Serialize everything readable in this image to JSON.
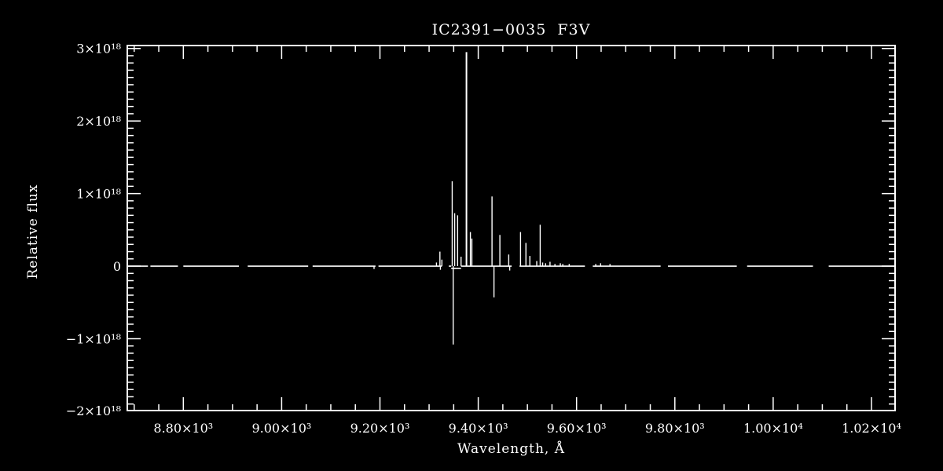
{
  "colors": {
    "background": "#000000",
    "axis": "#ffffff",
    "text": "#ffffff",
    "data_line": "#ffffff"
  },
  "chart_data": {
    "type": "line",
    "title": "IC2391−0035  F3V",
    "xlabel": "Wavelength, Å",
    "ylabel": "Relative flux",
    "grid": false,
    "legend": null,
    "xlim": [
      8686,
      10248
    ],
    "ylim_1e18": [
      -1.99,
      3.04
    ],
    "x_major_step": 200,
    "x_minor_step": 50,
    "y_minor_step_1e18": 0.1,
    "x_major_ticks": [
      {
        "value": 8800,
        "label": "8.80×10³"
      },
      {
        "value": 9000,
        "label": "9.00×10³"
      },
      {
        "value": 9200,
        "label": "9.20×10³"
      },
      {
        "value": 9400,
        "label": "9.40×10³"
      },
      {
        "value": 9600,
        "label": "9.60×10³"
      },
      {
        "value": 9800,
        "label": "9.80×10³"
      },
      {
        "value": 10000,
        "label": "1.00×10⁴"
      },
      {
        "value": 10200,
        "label": "1.02×10⁴"
      }
    ],
    "y_major_ticks": [
      {
        "value": 3,
        "label": "3×10¹⁸"
      },
      {
        "value": 2,
        "label": "2×10¹⁸"
      },
      {
        "value": 1,
        "label": "1×10¹⁸"
      },
      {
        "value": 0,
        "label": "0"
      },
      {
        "value": -1,
        "label": "−1×10¹⁸"
      },
      {
        "value": -2,
        "label": "−2×10¹⁸"
      }
    ],
    "baseline_segments": [
      {
        "from": 8686,
        "to": 8728,
        "flux_1e18": 0
      },
      {
        "from": 8733,
        "to": 8789,
        "flux_1e18": 0
      },
      {
        "from": 8800,
        "to": 8913,
        "flux_1e18": 0
      },
      {
        "from": 8931,
        "to": 9054,
        "flux_1e18": 0
      },
      {
        "from": 9063,
        "to": 9191,
        "flux_1e18": 0
      },
      {
        "from": 9197,
        "to": 9326,
        "flux_1e18": 0
      },
      {
        "from": 9340,
        "to": 9345,
        "flux_1e18": 0
      },
      {
        "from": 9345,
        "to": 9365,
        "flux_1e18": -0.03
      },
      {
        "from": 9365,
        "to": 9468,
        "flux_1e18": 0
      },
      {
        "from": 9484,
        "to": 9617,
        "flux_1e18": 0
      },
      {
        "from": 9633,
        "to": 9771,
        "flux_1e18": 0
      },
      {
        "from": 9786,
        "to": 9926,
        "flux_1e18": 0
      },
      {
        "from": 9947,
        "to": 10081,
        "flux_1e18": 0
      },
      {
        "from": 10113,
        "to": 10248,
        "flux_1e18": 0
      }
    ],
    "spikes": [
      {
        "wavelength": 9188,
        "flux_1e18": -0.04
      },
      {
        "wavelength": 9315,
        "flux_1e18": 0.05
      },
      {
        "wavelength": 9322,
        "flux_1e18": 0.2
      },
      {
        "wavelength": 9323,
        "flux_1e18": -0.05
      },
      {
        "wavelength": 9326,
        "flux_1e18": 0.09
      },
      {
        "wavelength": 9347,
        "flux_1e18": 1.17
      },
      {
        "wavelength": 9349,
        "flux_1e18": -1.08
      },
      {
        "wavelength": 9352,
        "flux_1e18": 0.73
      },
      {
        "wavelength": 9358,
        "flux_1e18": 0.7
      },
      {
        "wavelength": 9365,
        "flux_1e18": 0.13
      },
      {
        "wavelength": 9376,
        "flux_1e18": 2.95,
        "width": 2
      },
      {
        "wavelength": 9384,
        "flux_1e18": 0.47
      },
      {
        "wavelength": 9387,
        "flux_1e18": 0.38
      },
      {
        "wavelength": 9428,
        "flux_1e18": 0.96
      },
      {
        "wavelength": 9432,
        "flux_1e18": -0.43
      },
      {
        "wavelength": 9444,
        "flux_1e18": 0.43
      },
      {
        "wavelength": 9462,
        "flux_1e18": 0.16
      },
      {
        "wavelength": 9464,
        "flux_1e18": -0.06
      },
      {
        "wavelength": 9486,
        "flux_1e18": 0.47
      },
      {
        "wavelength": 9497,
        "flux_1e18": 0.32
      },
      {
        "wavelength": 9505,
        "flux_1e18": 0.14
      },
      {
        "wavelength": 9519,
        "flux_1e18": 0.07
      },
      {
        "wavelength": 9526,
        "flux_1e18": 0.57
      },
      {
        "wavelength": 9531,
        "flux_1e18": 0.05
      },
      {
        "wavelength": 9537,
        "flux_1e18": 0.04
      },
      {
        "wavelength": 9546,
        "flux_1e18": 0.06
      },
      {
        "wavelength": 9556,
        "flux_1e18": 0.03
      },
      {
        "wavelength": 9567,
        "flux_1e18": 0.04
      },
      {
        "wavelength": 9572,
        "flux_1e18": 0.03
      },
      {
        "wavelength": 9585,
        "flux_1e18": 0.03
      },
      {
        "wavelength": 9639,
        "flux_1e18": 0.03
      },
      {
        "wavelength": 9649,
        "flux_1e18": 0.04
      },
      {
        "wavelength": 9668,
        "flux_1e18": 0.03
      }
    ]
  }
}
